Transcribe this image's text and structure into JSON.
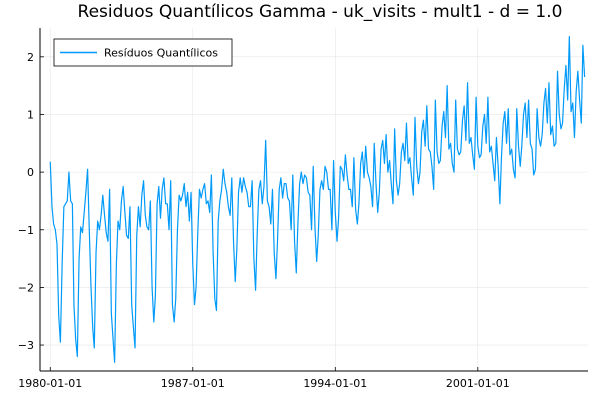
{
  "chart_data": {
    "type": "line",
    "title": "Residuos Quantílicos Gamma - uk_visits - mult1 - d = 1.0",
    "xlabel": "",
    "ylabel": "",
    "x_start": "1980-01",
    "x_end": "2005-10",
    "x_frequency": "monthly",
    "xlim": [
      "1979-07-01",
      "2006-06-01"
    ],
    "ylim": [
      -3.45,
      2.5
    ],
    "x_ticks": [
      "1980-01-01",
      "1987-01-01",
      "1994-01-01",
      "2001-01-01"
    ],
    "y_ticks": [
      -3,
      -2,
      -1,
      0,
      1,
      2
    ],
    "grid": true,
    "legend_position": "top-left",
    "series": [
      {
        "name": "Resíduos Quantílicos",
        "color": "#009af9",
        "values": [
          0.18,
          -0.6,
          -0.9,
          -1.0,
          -1.25,
          -2.5,
          -2.95,
          -1.6,
          -0.6,
          -0.55,
          -0.5,
          0.0,
          -0.5,
          -0.55,
          -2.3,
          -2.9,
          -3.2,
          -1.5,
          -0.95,
          -1.05,
          -0.7,
          -0.35,
          0.05,
          -1.0,
          -2.0,
          -2.7,
          -3.05,
          -1.4,
          -0.85,
          -1.0,
          -0.75,
          -0.4,
          -0.75,
          -1.05,
          -1.2,
          -0.3,
          -2.45,
          -2.9,
          -3.3,
          -1.6,
          -0.85,
          -1.0,
          -0.5,
          -0.25,
          -0.7,
          -1.1,
          -1.15,
          -0.6,
          -2.3,
          -2.7,
          -3.05,
          -1.1,
          -0.6,
          -0.95,
          -0.4,
          -0.15,
          -0.75,
          -0.95,
          -1.0,
          -0.5,
          -2.0,
          -2.6,
          -2.15,
          -0.55,
          -0.25,
          -0.8,
          -0.3,
          -0.1,
          -0.55,
          -0.55,
          -1.0,
          -0.15,
          -2.3,
          -2.6,
          -2.2,
          -1.0,
          -0.4,
          -0.5,
          -0.4,
          -0.2,
          -0.6,
          -0.35,
          -0.85,
          -0.35,
          -1.6,
          -2.3,
          -2.0,
          -1.05,
          -0.3,
          -0.45,
          -0.3,
          -0.2,
          -0.55,
          -0.5,
          -0.7,
          -0.05,
          -1.4,
          -2.2,
          -2.4,
          -0.85,
          -0.5,
          -0.3,
          0.05,
          -0.2,
          -0.35,
          -0.6,
          -0.75,
          -0.1,
          -1.2,
          -1.9,
          -1.35,
          -0.35,
          -0.1,
          -0.35,
          -0.1,
          -0.25,
          -0.35,
          -0.6,
          -0.6,
          -0.15,
          -1.5,
          -2.05,
          -1.1,
          -0.3,
          -0.15,
          -0.55,
          -0.25,
          0.55,
          -0.5,
          -0.6,
          -0.9,
          -0.3,
          -1.4,
          -1.85,
          -1.2,
          -0.3,
          -0.1,
          -0.45,
          -0.2,
          -0.2,
          -0.45,
          -0.5,
          -1.0,
          -0.05,
          -1.2,
          -1.75,
          -0.9,
          -0.2,
          0.0,
          -0.2,
          -0.05,
          -0.1,
          -0.35,
          -0.4,
          -1.0,
          0.1,
          -0.95,
          -1.55,
          -1.1,
          -0.3,
          -0.15,
          -0.3,
          0.1,
          0.0,
          -0.3,
          -0.3,
          -1.0,
          0.2,
          -0.7,
          -1.2,
          -0.8,
          0.1,
          0.05,
          -0.15,
          0.3,
          -0.05,
          -0.3,
          -0.3,
          -0.6,
          0.25,
          -0.65,
          -0.9,
          -0.55,
          0.15,
          0.35,
          -0.1,
          0.45,
          0.0,
          -0.1,
          -0.25,
          -0.6,
          0.5,
          -0.2,
          -0.7,
          -0.35,
          0.4,
          0.55,
          0.15,
          0.65,
          0.0,
          0.2,
          -0.2,
          -0.55,
          0.75,
          -0.15,
          -0.4,
          -0.2,
          0.35,
          0.5,
          0.2,
          0.85,
          0.15,
          0.25,
          -0.1,
          -0.4,
          0.95,
          0.1,
          -0.2,
          0.0,
          0.7,
          0.9,
          0.45,
          1.15,
          0.4,
          0.35,
          0.1,
          -0.3,
          1.25,
          0.35,
          0.15,
          0.2,
          0.8,
          1.05,
          0.6,
          1.5,
          0.4,
          0.5,
          0.15,
          0.0,
          1.25,
          0.4,
          0.3,
          0.35,
          0.9,
          1.15,
          0.55,
          1.55,
          0.5,
          0.6,
          0.3,
          0.05,
          1.3,
          0.45,
          0.25,
          0.3,
          0.8,
          1.0,
          0.5,
          1.3,
          0.35,
          0.45,
          0.15,
          -0.15,
          0.6,
          0.1,
          -0.55,
          0.25,
          0.85,
          1.05,
          0.5,
          1.1,
          0.3,
          0.4,
          0.05,
          -0.1,
          1.1,
          0.45,
          0.1,
          0.45,
          1.0,
          1.2,
          0.6,
          1.25,
          0.5,
          0.4,
          -0.05,
          0.05,
          1.1,
          0.6,
          0.45,
          0.65,
          1.2,
          1.45,
          0.85,
          1.55,
          0.65,
          0.8,
          0.45,
          0.5,
          1.75,
          1.0,
          0.75,
          0.85,
          1.45,
          1.85,
          1.25,
          2.35,
          1.05,
          1.2,
          0.6,
          1.4,
          1.75,
          1.25,
          0.85,
          2.2,
          1.65
        ]
      }
    ]
  }
}
